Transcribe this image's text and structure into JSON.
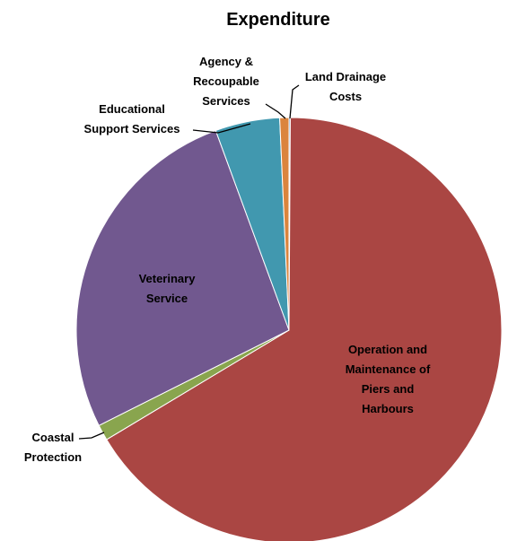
{
  "chart_data": {
    "type": "pie",
    "title": "Expenditure",
    "slices": [
      {
        "label": "Land Drainage Costs",
        "value": 0.1,
        "color": "#4f81bd"
      },
      {
        "label": "Operation and Maintenance of Piers and Harbours",
        "value": 66.3,
        "color": "#aa4643"
      },
      {
        "label": "Coastal Protection",
        "value": 1.2,
        "color": "#89a54e"
      },
      {
        "label": "Veterinary Service",
        "value": 26.8,
        "color": "#71588f"
      },
      {
        "label": "Educational Support Services",
        "value": 4.9,
        "color": "#4198af"
      },
      {
        "label": "Agency & Recoupable Services",
        "value": 0.7,
        "color": "#db843d"
      }
    ],
    "legend": "none",
    "data_labels": "category names"
  }
}
